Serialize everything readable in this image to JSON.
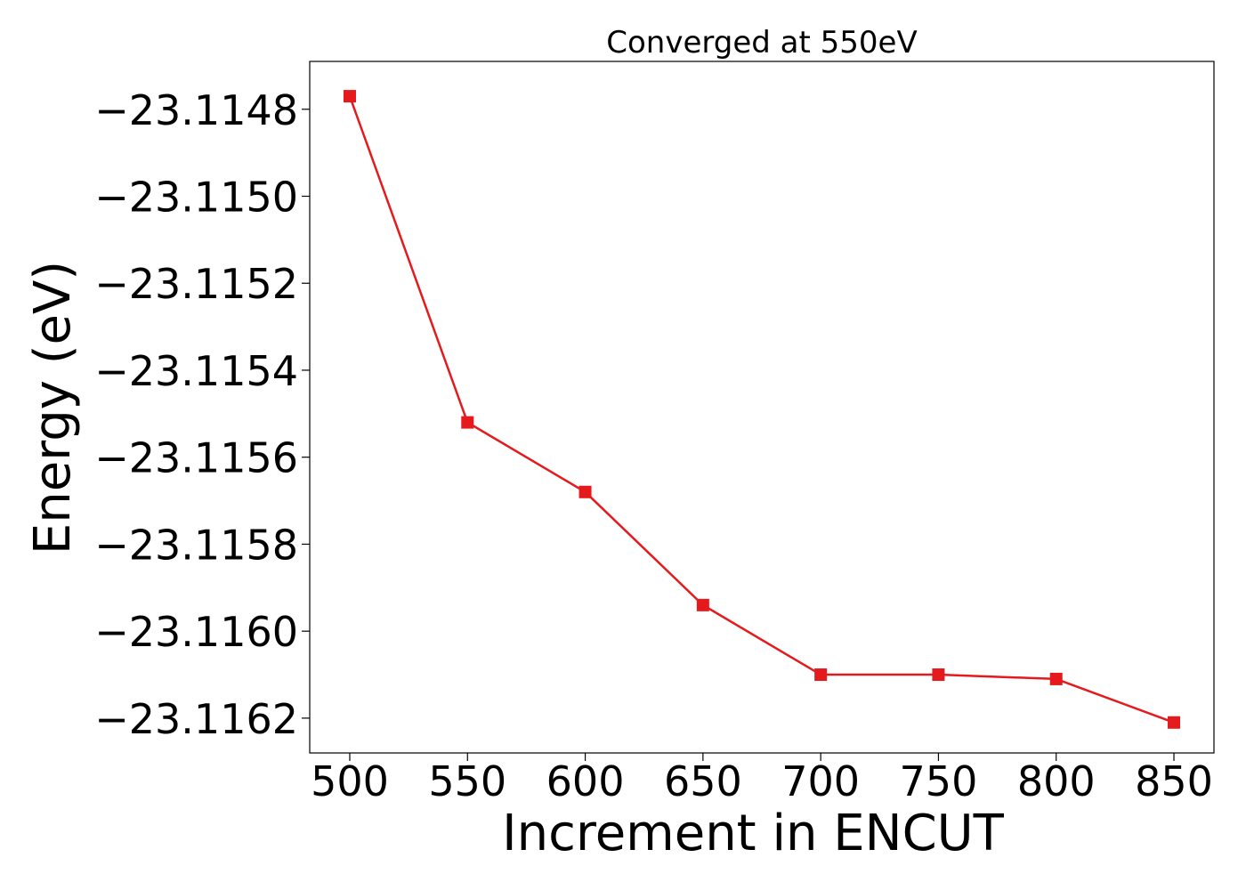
{
  "chart_data": {
    "type": "line",
    "title": "Converged at 550eV",
    "xlabel": "Increment in ENCUT",
    "ylabel": "Energy (eV)",
    "x": [
      500,
      550,
      600,
      650,
      700,
      750,
      800,
      850
    ],
    "series": [
      {
        "values": [
          -23.11477,
          -23.11552,
          -23.11568,
          -23.11594,
          -23.1161,
          -23.1161,
          -23.11611,
          -23.11621
        ],
        "color": "#e41a1c",
        "marker": "square"
      }
    ],
    "xticks": [
      500,
      550,
      600,
      650,
      700,
      750,
      800,
      850
    ],
    "xtick_labels": [
      "500",
      "550",
      "600",
      "650",
      "700",
      "750",
      "800",
      "850"
    ],
    "yticks": [
      -23.1148,
      -23.115,
      -23.1152,
      -23.1154,
      -23.1156,
      -23.1158,
      -23.116,
      -23.1162
    ],
    "ytick_labels": [
      "−23.1148",
      "−23.1150",
      "−23.1152",
      "−23.1154",
      "−23.1156",
      "−23.1158",
      "−23.1160",
      "−23.1162"
    ],
    "xlim": [
      483,
      867
    ],
    "ylim": [
      -23.11628,
      -23.11469
    ],
    "grid": false
  }
}
